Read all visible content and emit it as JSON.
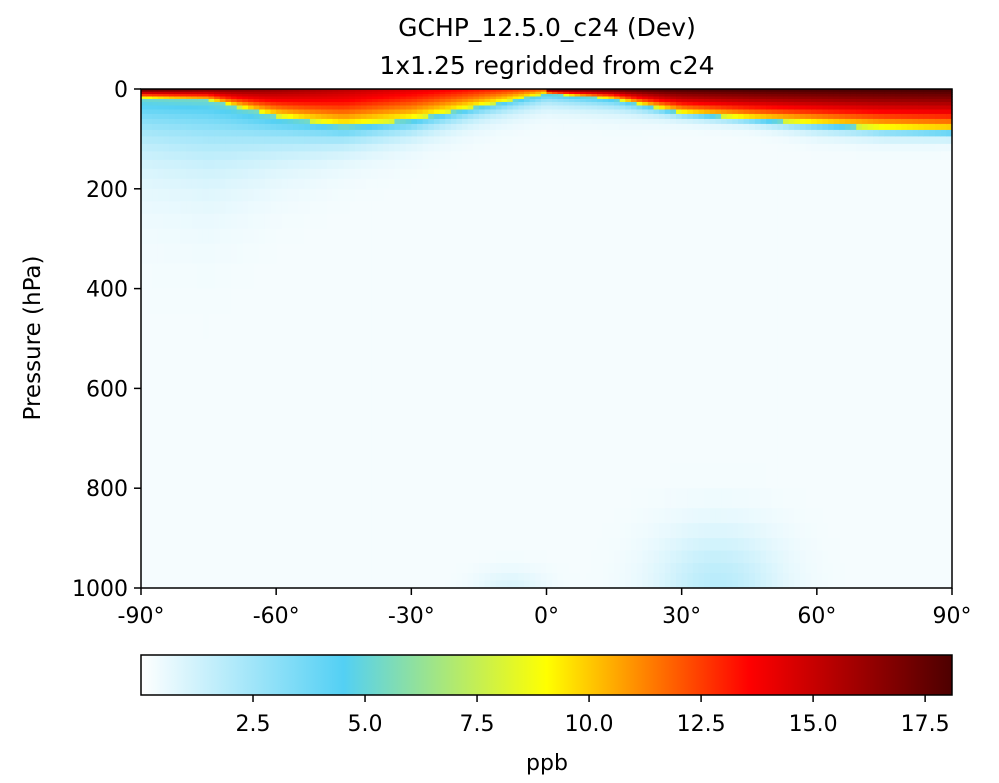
{
  "chart_data": {
    "type": "heatmap",
    "title": "GCHP_12.5.0_c24 (Dev)",
    "subtitle": "1x1.25 regridded from c24",
    "xlabel": "",
    "ylabel": "Pressure (hPa)",
    "xlim": [
      -90,
      90
    ],
    "ylim": [
      0,
      1000
    ],
    "x_ticks": [
      -90,
      -60,
      -30,
      0,
      30,
      60,
      90
    ],
    "x_tick_labels": [
      "-90°",
      "-60°",
      "-30°",
      "0°",
      "30°",
      "60°",
      "90°"
    ],
    "y_ticks": [
      0,
      200,
      400,
      600,
      800,
      1000
    ],
    "y_tick_labels": [
      "0",
      "200",
      "400",
      "600",
      "800",
      "1000"
    ],
    "colorbar": {
      "label": "ppb",
      "range": [
        0,
        18.1
      ],
      "ticks": [
        2.5,
        5.0,
        7.5,
        10.0,
        12.5,
        15.0,
        17.5
      ],
      "tick_labels": [
        "2.5",
        "5.0",
        "7.5",
        "10.0",
        "12.5",
        "15.0",
        "17.5"
      ],
      "colormap": "WhGrYlRd",
      "colors": [
        "#ffffff",
        "#53d0f4",
        "#ffff00",
        "#ff0000",
        "#4d0000"
      ]
    },
    "field": {
      "description_of_values": "zonal mean mixing ratio (ppb) vs latitude and pressure",
      "latitudes": [
        -90,
        -75,
        -60,
        -45,
        -30,
        -15,
        0,
        15,
        30,
        45,
        60,
        75,
        90
      ],
      "top_layer_depth_hPa": [
        18,
        22,
        55,
        75,
        62,
        35,
        10,
        20,
        48,
        60,
        70,
        80,
        85
      ],
      "upper_troposphere_halo_depth_hPa": [
        200,
        230,
        180,
        150,
        120,
        80,
        50,
        60,
        70,
        80,
        100,
        110,
        110
      ],
      "surface_max_ppb": 1.6,
      "surface_max_lat": 38,
      "peak_ppb": 18.1
    },
    "grid": false,
    "legend": "none"
  }
}
